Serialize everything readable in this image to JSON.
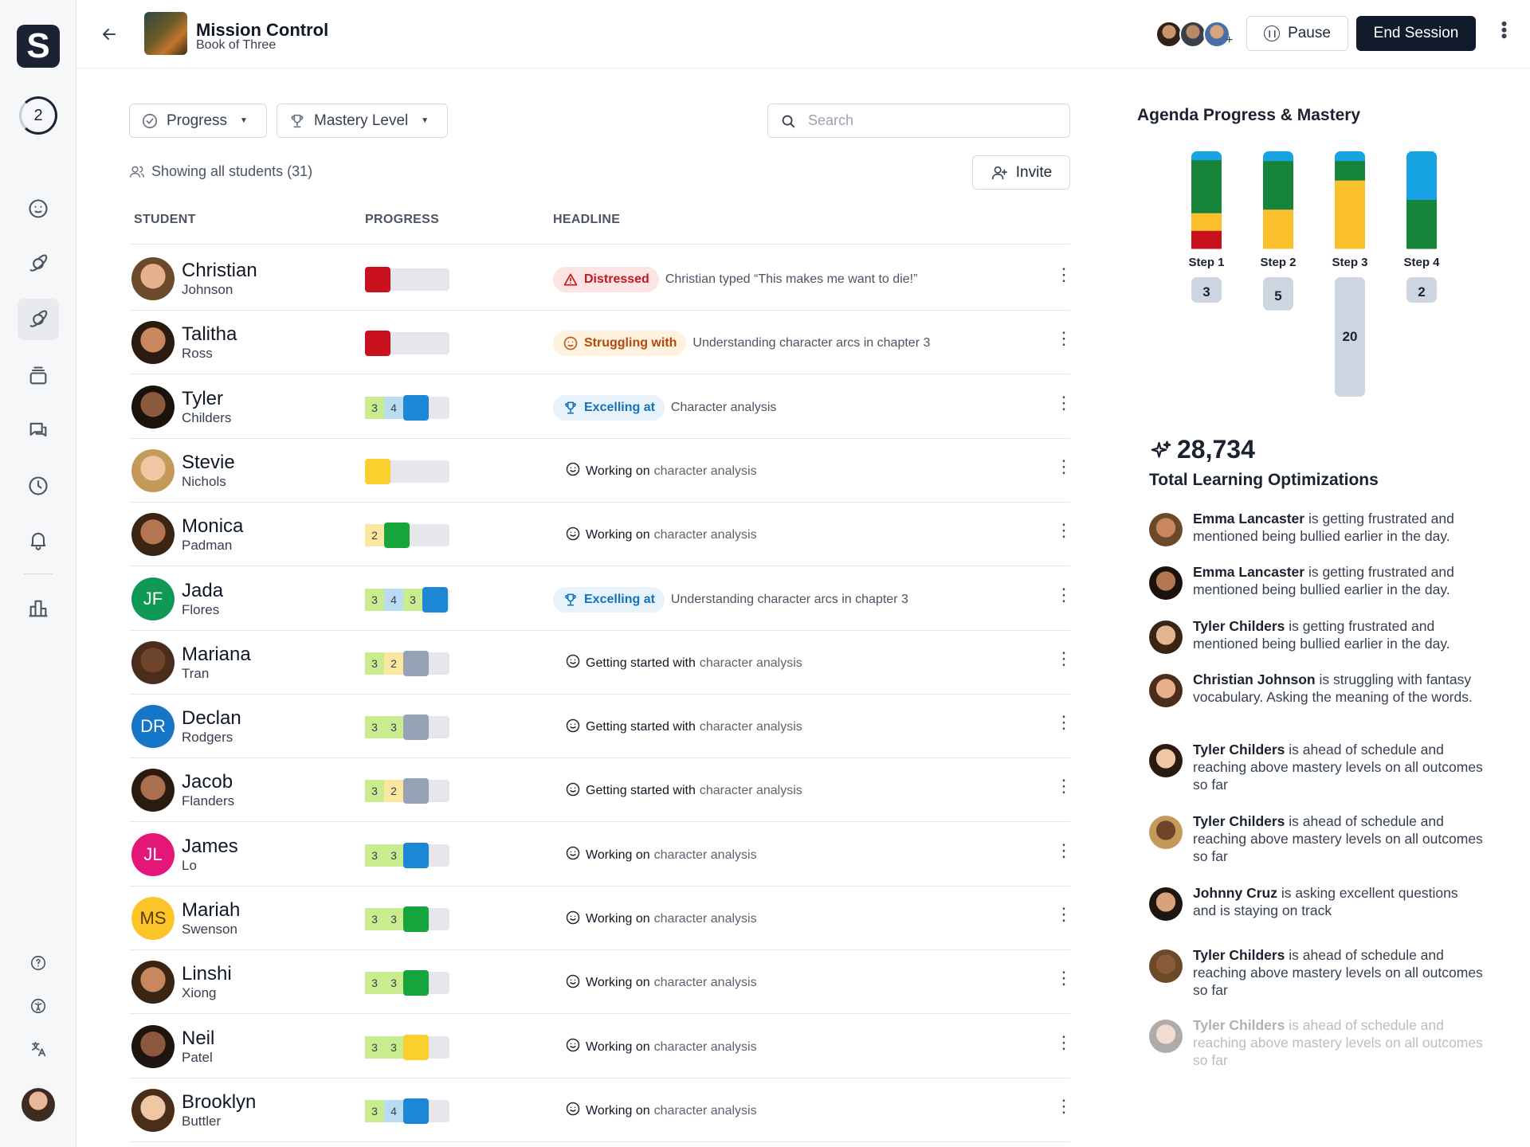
{
  "rail": {
    "step_number": "2",
    "logo_letter": "S",
    "icons": [
      "emoji-icon",
      "planet-icon",
      "planet-icon",
      "stack-icon",
      "chat-icon",
      "history-icon",
      "bell-icon",
      "chart-icon",
      "help-icon",
      "accessibility-icon",
      "translate-icon"
    ]
  },
  "topbar": {
    "title": "Mission Control",
    "subtitle": "Book of Three",
    "pause_label": "Pause",
    "end_label": "End Session",
    "add_participant": "+"
  },
  "filters": {
    "progress_label": "Progress",
    "mastery_label": "Mastery Level",
    "search_placeholder": "Search",
    "showing_text": "Showing all students (31)",
    "invite_label": "Invite"
  },
  "columns": {
    "student": "STUDENT",
    "progress": "PROGRESS",
    "headline": "HEADLINE"
  },
  "colors": {
    "red": "#c8101e",
    "blue": "#1c87d4",
    "green": "#15a53c",
    "yellow": "#fbcf2d",
    "gray": "#98a2b6",
    "dark_green": "#17843c",
    "amber": "#fbc02d",
    "sky": "#17a3e3"
  },
  "students": [
    {
      "first": "Christian",
      "last": "Johnson",
      "nums": [],
      "block": "red",
      "pill": {
        "kind": "distressed",
        "label": "Distressed"
      },
      "text": "Christian typed “This makes me want to die!”"
    },
    {
      "first": "Talitha",
      "last": "Ross",
      "nums": [],
      "block": "red",
      "pill": {
        "kind": "struggling",
        "label": "Struggling with"
      },
      "text": "Understanding character arcs in chapter 3"
    },
    {
      "first": "Tyler",
      "last": "Childers",
      "nums": [
        "3",
        "4"
      ],
      "block": "blue",
      "pill": {
        "kind": "excelling",
        "label": "Excelling at"
      },
      "text": "Character analysis"
    },
    {
      "first": "Stevie",
      "last": "Nichols",
      "nums": [],
      "block": "yellow",
      "verb": "Working on",
      "text": "character analysis"
    },
    {
      "first": "Monica",
      "last": "Padman",
      "nums": [
        "2"
      ],
      "block": "green",
      "verb": "Working on",
      "text": "character analysis"
    },
    {
      "first": "Jada",
      "last": "Flores",
      "initials": "JF",
      "initials_color": "#0e9a55",
      "nums": [
        "3",
        "4",
        "3"
      ],
      "block": "blue",
      "pill": {
        "kind": "excelling",
        "label": "Excelling at"
      },
      "text": "Understanding character arcs in chapter 3"
    },
    {
      "first": "Mariana",
      "last": "Tran",
      "nums": [
        "3",
        "2"
      ],
      "block": "gray",
      "verb": "Getting started with",
      "text": "character analysis"
    },
    {
      "first": "Declan",
      "last": "Rodgers",
      "initials": "DR",
      "initials_color": "#1576c8",
      "nums": [
        "3",
        "3"
      ],
      "block": "gray",
      "verb": "Getting started with",
      "text": "character analysis"
    },
    {
      "first": "Jacob",
      "last": "Flanders",
      "nums": [
        "3",
        "2"
      ],
      "block": "gray",
      "verb": "Getting started with",
      "text": "character analysis"
    },
    {
      "first": "James",
      "last": "Lo",
      "initials": "JL",
      "initials_color": "#e3177a",
      "nums": [
        "3",
        "3"
      ],
      "block": "blue",
      "verb": "Working on",
      "text": "character analysis"
    },
    {
      "first": "Mariah",
      "last": "Swenson",
      "initials": "MS",
      "initials_color": "#fbc52a",
      "initials_text": "#5a3a00",
      "nums": [
        "3",
        "3"
      ],
      "block": "green",
      "verb": "Working on",
      "text": "character analysis"
    },
    {
      "first": "Linshi",
      "last": "Xiong",
      "nums": [
        "3",
        "3"
      ],
      "block": "green",
      "verb": "Working on",
      "text": "character analysis"
    },
    {
      "first": "Neil",
      "last": "Patel",
      "nums": [
        "3",
        "3"
      ],
      "block": "yellow",
      "verb": "Working on",
      "text": "character analysis"
    },
    {
      "first": "Brooklyn",
      "last": "Buttler",
      "nums": [
        "3",
        "4"
      ],
      "block": "blue",
      "verb": "Working on",
      "text": "character analysis"
    }
  ],
  "agenda": {
    "title": "Agenda Progress & Mastery",
    "steps": [
      {
        "label": "Step 1",
        "count": 3,
        "segments": [
          {
            "color": "sky",
            "value": 1
          },
          {
            "color": "dark_green",
            "value": 6
          },
          {
            "color": "amber",
            "value": 2
          },
          {
            "color": "red",
            "value": 2
          }
        ]
      },
      {
        "label": "Step 2",
        "count": 5,
        "segments": [
          {
            "color": "sky",
            "value": 1
          },
          {
            "color": "dark_green",
            "value": 5
          },
          {
            "color": "amber",
            "value": 4
          }
        ]
      },
      {
        "label": "Step 3",
        "count": 20,
        "segments": [
          {
            "color": "sky",
            "value": 1
          },
          {
            "color": "dark_green",
            "value": 2
          },
          {
            "color": "amber",
            "value": 7
          }
        ]
      },
      {
        "label": "Step 4",
        "count": 2,
        "segments": [
          {
            "color": "sky",
            "value": 5
          },
          {
            "color": "dark_green",
            "value": 5
          }
        ]
      }
    ]
  },
  "stats": {
    "total_value": "28,734",
    "total_label": "Total Learning Optimizations"
  },
  "feed": [
    {
      "name": "Emma Lancaster",
      "text": " is getting frustrated and mentioned being bullied earlier in the day."
    },
    {
      "name": "Emma Lancaster",
      "text": " is getting frustrated and mentioned being bullied earlier in the day."
    },
    {
      "name": "Tyler Childers",
      "text": " is getting frustrated and mentioned being bullied earlier in the day."
    },
    {
      "name": "Christian Johnson",
      "text": " is struggling with fantasy vocabulary. Asking the meaning of the words."
    },
    {
      "name": "Tyler Childers",
      "text": " is ahead of schedule and reaching above mastery levels on all outcomes so far"
    },
    {
      "name": "Tyler Childers",
      "text": " is ahead of schedule and reaching above mastery levels on all outcomes so far"
    },
    {
      "name": "Johnny Cruz",
      "text": " is asking excellent questions and is staying on track"
    },
    {
      "name": "Tyler Childers",
      "text": " is ahead of schedule and reaching above mastery levels on all outcomes so far"
    },
    {
      "name": "Tyler Childers",
      "text": " is ahead of schedule and reaching above mastery levels on all outcomes so far"
    }
  ]
}
